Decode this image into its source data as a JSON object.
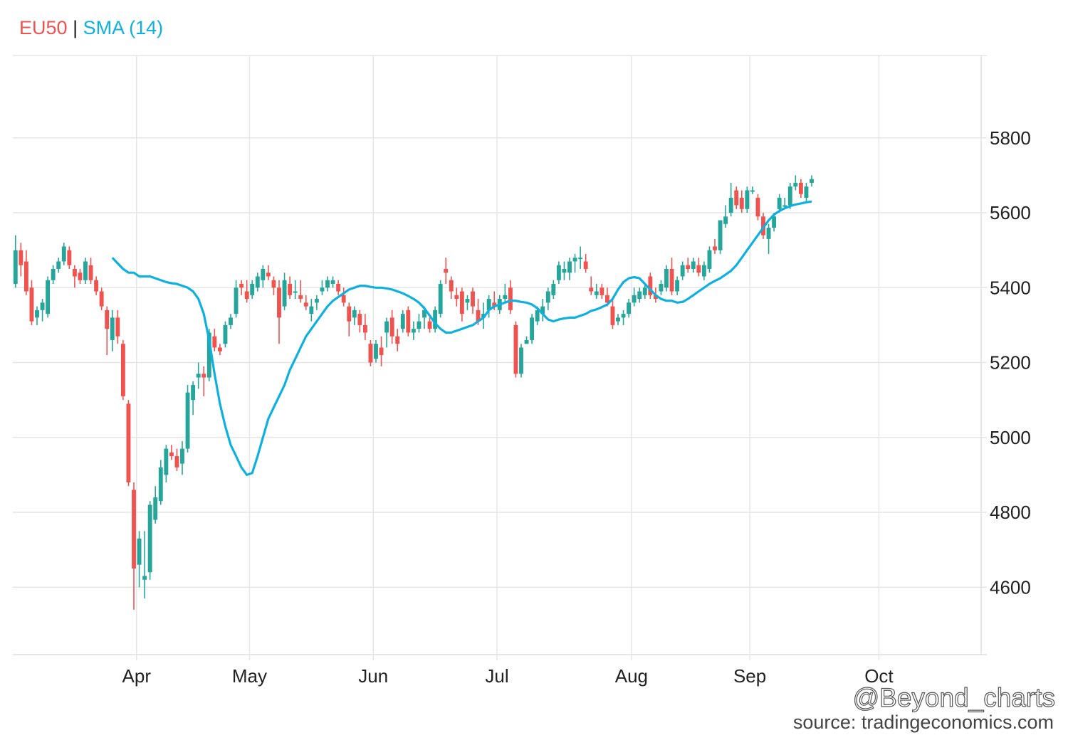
{
  "legend": {
    "symbol": "EU50",
    "separator": "|",
    "indicator": "SMA (14)"
  },
  "watermark": "@Beyond_charts",
  "source": "source: tradingeconomics.com",
  "colors": {
    "up": "#26a69a",
    "down": "#ef5350",
    "sma": "#0eb0e0",
    "grid": "#e6e6e6"
  },
  "chart_data": {
    "type": "candlestick",
    "title": "EU50 | SMA (14)",
    "xlabel": "",
    "ylabel": "",
    "ylim": [
      4420,
      6020
    ],
    "y_ticks": [
      4600,
      4800,
      5000,
      5200,
      5400,
      5600,
      5800
    ],
    "x_ticks": [
      {
        "label": "Apr",
        "index": 23
      },
      {
        "label": "May",
        "index": 44
      },
      {
        "label": "Jun",
        "index": 67
      },
      {
        "label": "Jul",
        "index": 90
      },
      {
        "label": "Aug",
        "index": 115
      },
      {
        "label": "Sep",
        "index": 137
      },
      {
        "label": "Oct",
        "index": 161
      }
    ],
    "x_range": [
      0,
      180
    ],
    "series": [
      {
        "name": "EU50",
        "ohlc": [
          [
            5410,
            5540,
            5400,
            5500
          ],
          [
            5500,
            5520,
            5430,
            5460
          ],
          [
            5470,
            5500,
            5380,
            5390
          ],
          [
            5400,
            5420,
            5300,
            5310
          ],
          [
            5320,
            5350,
            5300,
            5340
          ],
          [
            5340,
            5370,
            5310,
            5360
          ],
          [
            5330,
            5430,
            5320,
            5420
          ],
          [
            5420,
            5460,
            5410,
            5450
          ],
          [
            5450,
            5480,
            5440,
            5470
          ],
          [
            5470,
            5520,
            5460,
            5510
          ],
          [
            5500,
            5510,
            5450,
            5460
          ],
          [
            5450,
            5460,
            5400,
            5430
          ],
          [
            5440,
            5450,
            5410,
            5420
          ],
          [
            5420,
            5480,
            5410,
            5470
          ],
          [
            5460,
            5480,
            5410,
            5420
          ],
          [
            5420,
            5430,
            5380,
            5390
          ],
          [
            5390,
            5400,
            5340,
            5350
          ],
          [
            5340,
            5350,
            5220,
            5290
          ],
          [
            5260,
            5340,
            5230,
            5320
          ],
          [
            5320,
            5340,
            5250,
            5270
          ],
          [
            5250,
            5260,
            5100,
            5110
          ],
          [
            5090,
            5100,
            4870,
            4880
          ],
          [
            4860,
            4880,
            4540,
            4650
          ],
          [
            4660,
            4750,
            4600,
            4730
          ],
          [
            4620,
            4750,
            4570,
            4630
          ],
          [
            4640,
            4830,
            4620,
            4820
          ],
          [
            4780,
            4870,
            4770,
            4840
          ],
          [
            4830,
            4940,
            4820,
            4920
          ],
          [
            4900,
            4980,
            4880,
            4970
          ],
          [
            4960,
            4980,
            4940,
            4950
          ],
          [
            4950,
            4970,
            4910,
            4920
          ],
          [
            4930,
            4990,
            4900,
            4970
          ],
          [
            4970,
            5140,
            4960,
            5120
          ],
          [
            5100,
            5150,
            5060,
            5140
          ],
          [
            5160,
            5200,
            5130,
            5170
          ],
          [
            5170,
            5190,
            5110,
            5160
          ],
          [
            5160,
            5290,
            5150,
            5280
          ],
          [
            5270,
            5290,
            5230,
            5240
          ],
          [
            5240,
            5250,
            5220,
            5230
          ],
          [
            5250,
            5310,
            5240,
            5300
          ],
          [
            5300,
            5330,
            5290,
            5320
          ],
          [
            5330,
            5420,
            5320,
            5400
          ],
          [
            5410,
            5420,
            5380,
            5400
          ],
          [
            5390,
            5420,
            5360,
            5370
          ],
          [
            5380,
            5420,
            5370,
            5410
          ],
          [
            5400,
            5440,
            5390,
            5430
          ],
          [
            5420,
            5460,
            5400,
            5450
          ],
          [
            5440,
            5460,
            5420,
            5430
          ],
          [
            5420,
            5430,
            5380,
            5400
          ],
          [
            5400,
            5420,
            5250,
            5320
          ],
          [
            5350,
            5440,
            5340,
            5420
          ],
          [
            5410,
            5430,
            5370,
            5380
          ],
          [
            5390,
            5420,
            5370,
            5390
          ],
          [
            5380,
            5420,
            5360,
            5370
          ],
          [
            5360,
            5380,
            5340,
            5350
          ],
          [
            5330,
            5370,
            5310,
            5350
          ],
          [
            5360,
            5380,
            5340,
            5370
          ],
          [
            5390,
            5420,
            5380,
            5400
          ],
          [
            5400,
            5430,
            5390,
            5420
          ],
          [
            5410,
            5430,
            5400,
            5420
          ],
          [
            5410,
            5420,
            5380,
            5390
          ],
          [
            5380,
            5400,
            5350,
            5360
          ],
          [
            5350,
            5360,
            5270,
            5310
          ],
          [
            5320,
            5350,
            5300,
            5340
          ],
          [
            5330,
            5340,
            5280,
            5300
          ],
          [
            5300,
            5330,
            5260,
            5280
          ],
          [
            5250,
            5260,
            5190,
            5200
          ],
          [
            5210,
            5260,
            5200,
            5250
          ],
          [
            5240,
            5270,
            5190,
            5220
          ],
          [
            5280,
            5320,
            5240,
            5310
          ],
          [
            5320,
            5340,
            5250,
            5270
          ],
          [
            5270,
            5290,
            5230,
            5250
          ],
          [
            5290,
            5340,
            5280,
            5330
          ],
          [
            5340,
            5350,
            5270,
            5280
          ],
          [
            5280,
            5310,
            5260,
            5290
          ],
          [
            5290,
            5330,
            5280,
            5310
          ],
          [
            5320,
            5350,
            5290,
            5340
          ],
          [
            5310,
            5320,
            5280,
            5290
          ],
          [
            5290,
            5350,
            5280,
            5340
          ],
          [
            5330,
            5420,
            5320,
            5410
          ],
          [
            5450,
            5480,
            5410,
            5440
          ],
          [
            5420,
            5430,
            5370,
            5390
          ],
          [
            5380,
            5400,
            5350,
            5370
          ],
          [
            5390,
            5400,
            5310,
            5330
          ],
          [
            5360,
            5380,
            5340,
            5370
          ],
          [
            5390,
            5400,
            5330,
            5350
          ],
          [
            5340,
            5370,
            5300,
            5310
          ],
          [
            5320,
            5360,
            5290,
            5330
          ],
          [
            5340,
            5380,
            5320,
            5370
          ],
          [
            5360,
            5390,
            5340,
            5350
          ],
          [
            5340,
            5380,
            5330,
            5370
          ],
          [
            5370,
            5410,
            5360,
            5380
          ],
          [
            5400,
            5420,
            5330,
            5340
          ],
          [
            5300,
            5310,
            5160,
            5170
          ],
          [
            5170,
            5250,
            5160,
            5240
          ],
          [
            5250,
            5270,
            5250,
            5260
          ],
          [
            5260,
            5330,
            5250,
            5320
          ],
          [
            5310,
            5350,
            5300,
            5340
          ],
          [
            5330,
            5370,
            5310,
            5350
          ],
          [
            5360,
            5400,
            5340,
            5390
          ],
          [
            5380,
            5420,
            5370,
            5410
          ],
          [
            5420,
            5470,
            5410,
            5460
          ],
          [
            5440,
            5470,
            5420,
            5450
          ],
          [
            5440,
            5480,
            5420,
            5470
          ],
          [
            5470,
            5490,
            5440,
            5480
          ],
          [
            5480,
            5510,
            5450,
            5480
          ],
          [
            5470,
            5490,
            5440,
            5450
          ],
          [
            5400,
            5430,
            5380,
            5390
          ],
          [
            5380,
            5410,
            5370,
            5390
          ],
          [
            5400,
            5410,
            5370,
            5380
          ],
          [
            5380,
            5400,
            5350,
            5360
          ],
          [
            5350,
            5370,
            5290,
            5300
          ],
          [
            5310,
            5330,
            5300,
            5320
          ],
          [
            5320,
            5340,
            5300,
            5330
          ],
          [
            5330,
            5370,
            5320,
            5360
          ],
          [
            5360,
            5400,
            5350,
            5380
          ],
          [
            5370,
            5400,
            5360,
            5390
          ],
          [
            5380,
            5410,
            5370,
            5400
          ],
          [
            5430,
            5440,
            5370,
            5380
          ],
          [
            5380,
            5400,
            5360,
            5370
          ],
          [
            5390,
            5420,
            5380,
            5410
          ],
          [
            5400,
            5460,
            5390,
            5450
          ],
          [
            5450,
            5480,
            5380,
            5390
          ],
          [
            5390,
            5430,
            5380,
            5420
          ],
          [
            5430,
            5470,
            5420,
            5460
          ],
          [
            5460,
            5480,
            5440,
            5450
          ],
          [
            5450,
            5480,
            5440,
            5470
          ],
          [
            5460,
            5480,
            5430,
            5440
          ],
          [
            5430,
            5470,
            5420,
            5460
          ],
          [
            5450,
            5510,
            5440,
            5500
          ],
          [
            5510,
            5530,
            5490,
            5500
          ],
          [
            5500,
            5580,
            5490,
            5580
          ],
          [
            5570,
            5620,
            5560,
            5590
          ],
          [
            5600,
            5680,
            5590,
            5640
          ],
          [
            5660,
            5670,
            5610,
            5620
          ],
          [
            5640,
            5660,
            5600,
            5610
          ],
          [
            5610,
            5670,
            5600,
            5660
          ],
          [
            5660,
            5670,
            5650,
            5660
          ],
          [
            5640,
            5650,
            5580,
            5590
          ],
          [
            5590,
            5600,
            5530,
            5540
          ],
          [
            5530,
            5570,
            5490,
            5560
          ],
          [
            5560,
            5600,
            5550,
            5590
          ],
          [
            5610,
            5650,
            5600,
            5640
          ],
          [
            5620,
            5640,
            5610,
            5620
          ],
          [
            5620,
            5680,
            5610,
            5670
          ],
          [
            5670,
            5700,
            5660,
            5680
          ],
          [
            5680,
            5690,
            5640,
            5650
          ],
          [
            5640,
            5680,
            5630,
            5670
          ],
          [
            5680,
            5700,
            5670,
            5690
          ]
        ]
      },
      {
        "name": "SMA (14)",
        "values": [
          5480,
          5465,
          5450,
          5440,
          5440,
          5430,
          5430,
          5430,
          5425,
          5420,
          5415,
          5412,
          5410,
          5405,
          5400,
          5390,
          5370,
          5330,
          5260,
          5170,
          5090,
          5030,
          4980,
          4950,
          4920,
          4900,
          4905,
          4950,
          5000,
          5050,
          5080,
          5110,
          5140,
          5180,
          5210,
          5240,
          5270,
          5290,
          5310,
          5330,
          5350,
          5365,
          5375,
          5385,
          5395,
          5400,
          5405,
          5405,
          5402,
          5400,
          5400,
          5398,
          5395,
          5390,
          5385,
          5378,
          5370,
          5360,
          5345,
          5325,
          5305,
          5290,
          5280,
          5280,
          5285,
          5290,
          5295,
          5300,
          5310,
          5320,
          5340,
          5350,
          5355,
          5360,
          5365,
          5365,
          5362,
          5360,
          5355,
          5345,
          5330,
          5315,
          5310,
          5315,
          5318,
          5320,
          5320,
          5325,
          5330,
          5338,
          5342,
          5348,
          5355,
          5370,
          5395,
          5415,
          5425,
          5428,
          5425,
          5410,
          5395,
          5380,
          5370,
          5365,
          5365,
          5360,
          5362,
          5370,
          5380,
          5390,
          5400,
          5410,
          5418,
          5425,
          5435,
          5445,
          5460,
          5480,
          5500,
          5520,
          5540,
          5560,
          5580,
          5595,
          5605,
          5612,
          5618,
          5622,
          5625,
          5628,
          5630
        ]
      }
    ]
  }
}
